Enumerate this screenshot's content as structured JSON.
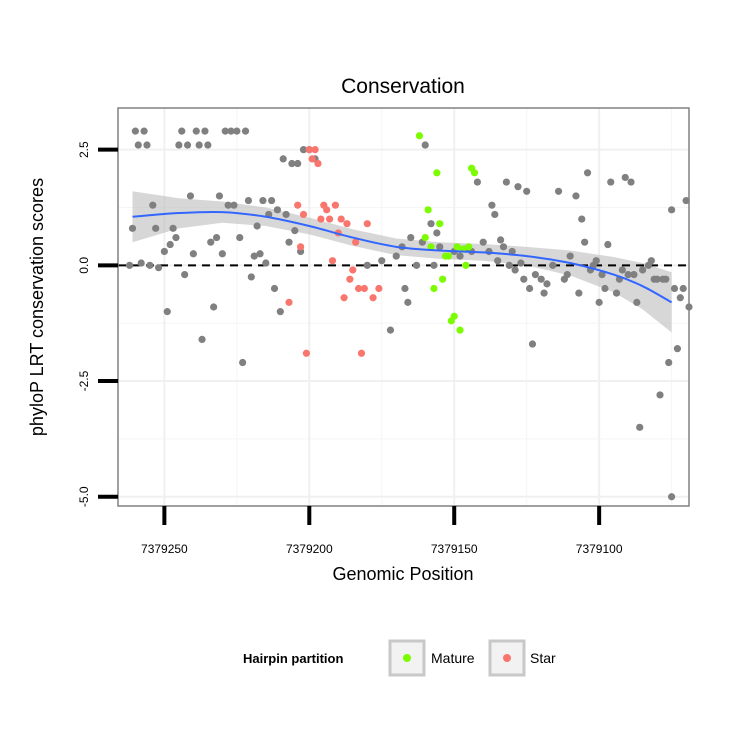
{
  "chart_data": {
    "type": "scatter",
    "title": "Conservation",
    "xlabel": "Genomic Position",
    "ylabel": "phyloP LRT conservation scores",
    "x_reversed": true,
    "xlim": [
      7379266,
      7379069
    ],
    "ylim": [
      -5.2,
      3.4
    ],
    "x_ticks": [
      7379250,
      7379200,
      7379150,
      7379100
    ],
    "x_tick_labels": [
      "7379250",
      "7379200",
      "7379150",
      "7379100"
    ],
    "y_ticks": [
      -5.0,
      -2.5,
      0.0,
      2.5
    ],
    "y_tick_labels": [
      "-5.0",
      "-2.5",
      "0.0",
      "2.5"
    ],
    "reference_line": {
      "y": 0,
      "style": "dashed"
    },
    "grid": true,
    "legend": {
      "title": "Hairpin partition",
      "position": "bottom",
      "entries": [
        {
          "label": "Mature",
          "color": "#7cfc00"
        },
        {
          "label": "Star",
          "color": "#f8766d"
        }
      ]
    },
    "smooth": {
      "color": "#3366ff",
      "band_color": "#bdbdbd",
      "x": [
        7379261,
        7379245,
        7379230,
        7379215,
        7379200,
        7379185,
        7379170,
        7379155,
        7379140,
        7379125,
        7379110,
        7379095,
        7379085,
        7379075
      ],
      "y": [
        1.05,
        1.13,
        1.15,
        1.05,
        0.85,
        0.6,
        0.4,
        0.32,
        0.28,
        0.2,
        0.05,
        -0.2,
        -0.45,
        -0.8
      ],
      "band_upper": [
        1.6,
        1.45,
        1.38,
        1.25,
        1.03,
        0.78,
        0.58,
        0.5,
        0.46,
        0.4,
        0.32,
        0.18,
        0.05,
        -0.15
      ],
      "band_lower": [
        0.5,
        0.8,
        0.92,
        0.85,
        0.67,
        0.42,
        0.22,
        0.14,
        0.1,
        0.0,
        -0.22,
        -0.58,
        -0.95,
        -1.45
      ]
    },
    "series": [
      {
        "name": "",
        "color": "#808080",
        "points": [
          [
            7379262,
            0.0
          ],
          [
            7379261,
            0.8
          ],
          [
            7379260,
            2.9
          ],
          [
            7379259,
            2.6
          ],
          [
            7379258,
            0.05
          ],
          [
            7379257,
            2.9
          ],
          [
            7379256,
            2.6
          ],
          [
            7379255,
            0.0
          ],
          [
            7379254,
            1.3
          ],
          [
            7379253,
            0.8
          ],
          [
            7379252,
            -0.05
          ],
          [
            7379250,
            0.3
          ],
          [
            7379249,
            -1.0
          ],
          [
            7379248,
            0.45
          ],
          [
            7379247,
            0.8
          ],
          [
            7379246,
            0.6
          ],
          [
            7379245,
            2.6
          ],
          [
            7379244,
            2.9
          ],
          [
            7379243,
            -0.2
          ],
          [
            7379242,
            2.6
          ],
          [
            7379241,
            1.5
          ],
          [
            7379240,
            0.25
          ],
          [
            7379239,
            2.9
          ],
          [
            7379238,
            2.6
          ],
          [
            7379237,
            -1.6
          ],
          [
            7379236,
            2.9
          ],
          [
            7379235,
            2.6
          ],
          [
            7379234,
            0.5
          ],
          [
            7379233,
            -0.9
          ],
          [
            7379232,
            0.6
          ],
          [
            7379231,
            1.5
          ],
          [
            7379230,
            0.25
          ],
          [
            7379229,
            2.9
          ],
          [
            7379228,
            1.3
          ],
          [
            7379227,
            2.9
          ],
          [
            7379226,
            1.3
          ],
          [
            7379225,
            2.9
          ],
          [
            7379224,
            0.6
          ],
          [
            7379223,
            -2.1
          ],
          [
            7379222,
            2.9
          ],
          [
            7379221,
            1.4
          ],
          [
            7379220,
            -0.25
          ],
          [
            7379219,
            0.2
          ],
          [
            7379218,
            0.85
          ],
          [
            7379217,
            0.25
          ],
          [
            7379216,
            1.4
          ],
          [
            7379215,
            0.05
          ],
          [
            7379214,
            1.1
          ],
          [
            7379213,
            1.4
          ],
          [
            7379212,
            -0.5
          ],
          [
            7379211,
            1.2
          ],
          [
            7379210,
            -1.0
          ],
          [
            7379209,
            2.3
          ],
          [
            7379208,
            1.1
          ],
          [
            7379207,
            0.5
          ],
          [
            7379206,
            2.2
          ],
          [
            7379205,
            0.75
          ],
          [
            7379204,
            2.2
          ],
          [
            7379203,
            0.3
          ],
          [
            7379202,
            2.5
          ],
          [
            7379200,
            2.5
          ],
          [
            7379198,
            2.3
          ],
          [
            7379180,
            0.0
          ],
          [
            7379175,
            0.1
          ],
          [
            7379172,
            -1.4
          ],
          [
            7379170,
            0.2
          ],
          [
            7379168,
            0.4
          ],
          [
            7379167,
            -0.5
          ],
          [
            7379166,
            -0.8
          ],
          [
            7379165,
            0.6
          ],
          [
            7379163,
            0.0
          ],
          [
            7379161,
            0.5
          ],
          [
            7379160,
            2.6
          ],
          [
            7379158,
            0.9
          ],
          [
            7379157,
            0.0
          ],
          [
            7379156,
            0.7
          ],
          [
            7379155,
            0.4
          ],
          [
            7379150,
            0.3
          ],
          [
            7379148,
            0.2
          ],
          [
            7379146,
            0.35
          ],
          [
            7379144,
            0.3
          ],
          [
            7379142,
            1.8
          ],
          [
            7379140,
            0.5
          ],
          [
            7379138,
            0.3
          ],
          [
            7379137,
            1.3
          ],
          [
            7379136,
            1.1
          ],
          [
            7379135,
            0.1
          ],
          [
            7379134,
            0.55
          ],
          [
            7379133,
            0.4
          ],
          [
            7379132,
            1.8
          ],
          [
            7379131,
            0.0
          ],
          [
            7379130,
            0.3
          ],
          [
            7379129,
            -0.1
          ],
          [
            7379128,
            1.7
          ],
          [
            7379127,
            0.05
          ],
          [
            7379126,
            -0.3
          ],
          [
            7379125,
            1.6
          ],
          [
            7379124,
            -0.5
          ],
          [
            7379123,
            -1.7
          ],
          [
            7379122,
            -0.2
          ],
          [
            7379120,
            -0.3
          ],
          [
            7379119,
            -0.6
          ],
          [
            7379118,
            -0.4
          ],
          [
            7379116,
            0.0
          ],
          [
            7379114,
            1.6
          ],
          [
            7379112,
            -0.3
          ],
          [
            7379111,
            -0.2
          ],
          [
            7379110,
            0.2
          ],
          [
            7379108,
            1.5
          ],
          [
            7379107,
            -0.6
          ],
          [
            7379106,
            1.0
          ],
          [
            7379105,
            0.5
          ],
          [
            7379104,
            2.0
          ],
          [
            7379103,
            -0.1
          ],
          [
            7379102,
            0.0
          ],
          [
            7379101,
            0.1
          ],
          [
            7379100,
            -0.8
          ],
          [
            7379099,
            -0.2
          ],
          [
            7379098,
            -0.5
          ],
          [
            7379097,
            0.45
          ],
          [
            7379096,
            1.8
          ],
          [
            7379094,
            -0.6
          ],
          [
            7379093,
            -0.3
          ],
          [
            7379092,
            -0.1
          ],
          [
            7379091,
            1.9
          ],
          [
            7379090,
            -0.2
          ],
          [
            7379089,
            1.8
          ],
          [
            7379088,
            -0.2
          ],
          [
            7379087,
            -0.8
          ],
          [
            7379086,
            -3.5
          ],
          [
            7379085,
            -0.1
          ],
          [
            7379083,
            0.0
          ],
          [
            7379082,
            0.1
          ],
          [
            7379081,
            -0.3
          ],
          [
            7379080,
            -0.3
          ],
          [
            7379079,
            -2.8
          ],
          [
            7379078,
            -0.3
          ],
          [
            7379077,
            -0.3
          ],
          [
            7379076,
            -2.1
          ],
          [
            7379075,
            1.2
          ],
          [
            7379074,
            -0.5
          ],
          [
            7379073,
            -1.8
          ],
          [
            7379072,
            -0.7
          ],
          [
            7379071,
            -0.5
          ],
          [
            7379070,
            1.4
          ],
          [
            7379069,
            -0.9
          ],
          [
            7379075,
            -5.0
          ]
        ]
      },
      {
        "name": "Star",
        "color": "#f8766d",
        "points": [
          [
            7379207,
            -0.8
          ],
          [
            7379204,
            1.3
          ],
          [
            7379203,
            0.4
          ],
          [
            7379202,
            1.1
          ],
          [
            7379201,
            -1.9
          ],
          [
            7379200,
            2.5
          ],
          [
            7379199,
            2.3
          ],
          [
            7379198,
            2.5
          ],
          [
            7379197,
            2.2
          ],
          [
            7379196,
            1.0
          ],
          [
            7379195,
            1.3
          ],
          [
            7379194,
            1.2
          ],
          [
            7379193,
            1.0
          ],
          [
            7379192,
            0.1
          ],
          [
            7379191,
            1.3
          ],
          [
            7379190,
            0.7
          ],
          [
            7379189,
            1.0
          ],
          [
            7379188,
            -0.7
          ],
          [
            7379187,
            0.9
          ],
          [
            7379186,
            -0.3
          ],
          [
            7379185,
            -0.1
          ],
          [
            7379184,
            0.5
          ],
          [
            7379183,
            -0.5
          ],
          [
            7379182,
            -1.9
          ],
          [
            7379181,
            -0.5
          ],
          [
            7379180,
            0.9
          ],
          [
            7379178,
            -0.7
          ],
          [
            7379176,
            -0.5
          ]
        ]
      },
      {
        "name": "Mature",
        "color": "#7cfc00",
        "points": [
          [
            7379162,
            2.8
          ],
          [
            7379160,
            0.6
          ],
          [
            7379159,
            1.2
          ],
          [
            7379158,
            0.4
          ],
          [
            7379157,
            -0.5
          ],
          [
            7379156,
            2.0
          ],
          [
            7379155,
            0.9
          ],
          [
            7379154,
            -0.3
          ],
          [
            7379153,
            0.2
          ],
          [
            7379152,
            0.2
          ],
          [
            7379151,
            -1.2
          ],
          [
            7379150,
            -1.1
          ],
          [
            7379149,
            0.4
          ],
          [
            7379148,
            -1.4
          ],
          [
            7379147,
            0.35
          ],
          [
            7379146,
            0.0
          ],
          [
            7379145,
            0.4
          ],
          [
            7379144,
            2.1
          ],
          [
            7379143,
            2.0
          ]
        ]
      }
    ]
  }
}
